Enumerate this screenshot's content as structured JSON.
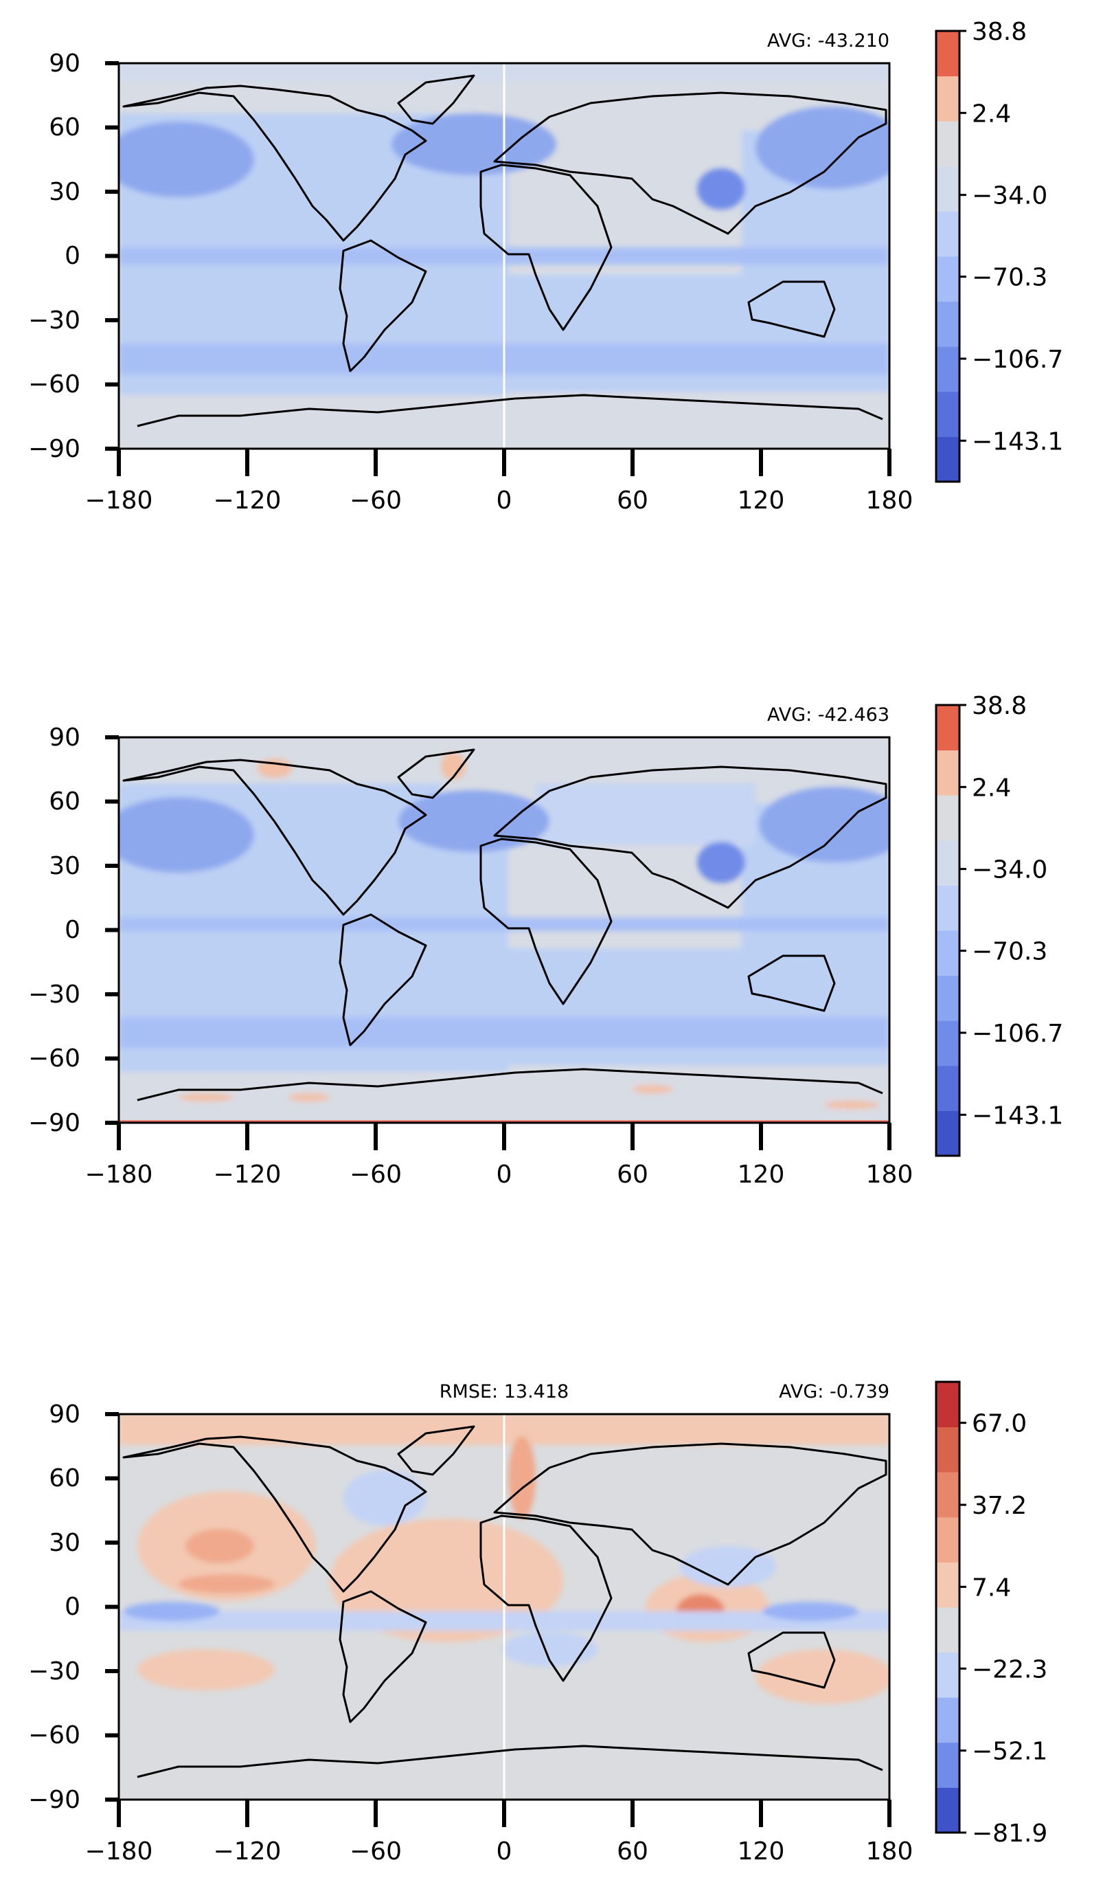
{
  "chart_data": [
    {
      "type": "heatmap",
      "title": "",
      "annotations": {
        "avg": "AVG: -43.210"
      },
      "xlabel": "",
      "ylabel": "",
      "xlim": [
        -180,
        180
      ],
      "ylim": [
        -90,
        90
      ],
      "x_ticks": [
        "−180",
        "−120",
        "−60",
        "0",
        "60",
        "120",
        "180"
      ],
      "y_ticks": [
        "90",
        "60",
        "30",
        "0",
        "−30",
        "−60",
        "−90"
      ],
      "colorbar": {
        "range": [
          -161.3,
          38.8
        ],
        "levels": 11,
        "tick_labels": [
          "38.8",
          "2.4",
          "−34.0",
          "−70.3",
          "−106.7",
          "−143.1"
        ],
        "tick_values": [
          38.8,
          2.4,
          -34.0,
          -70.3,
          -106.7,
          -143.1
        ],
        "colors": [
          "#3f53c9",
          "#5671db",
          "#6f8ce8",
          "#89a5f2",
          "#a4bcf8",
          "#bdcff6",
          "#d1dbeb",
          "#dadcdf",
          "#f3bfa5",
          "#e6634c"
        ]
      },
      "field": "mostly negative (blue) over oceans and storm tracks; near zero (grey) over land, deserts and polar regions",
      "meridian_line": true
    },
    {
      "type": "heatmap",
      "title": "",
      "annotations": {
        "avg": "AVG: -42.463"
      },
      "xlabel": "",
      "ylabel": "",
      "xlim": [
        -180,
        180
      ],
      "ylim": [
        -90,
        90
      ],
      "x_ticks": [
        "−180",
        "−120",
        "−60",
        "0",
        "60",
        "120",
        "180"
      ],
      "y_ticks": [
        "90",
        "60",
        "30",
        "0",
        "−30",
        "−60",
        "−90"
      ],
      "colorbar": {
        "range": [
          -161.3,
          38.8
        ],
        "levels": 11,
        "tick_labels": [
          "38.8",
          "2.4",
          "−34.0",
          "−70.3",
          "−106.7",
          "−143.1"
        ],
        "tick_values": [
          38.8,
          2.4,
          -34.0,
          -70.3,
          -106.7,
          -143.1
        ],
        "colors": [
          "#3f53c9",
          "#5671db",
          "#6f8ce8",
          "#89a5f2",
          "#a4bcf8",
          "#bdcff6",
          "#d1dbeb",
          "#dadcdf",
          "#f3bfa5",
          "#e6634c"
        ]
      },
      "field": "similar pattern to panel 1; small positive (orange) patches over Greenland and Antarctic coast",
      "meridian_line": false
    },
    {
      "type": "heatmap",
      "title": "",
      "annotations": {
        "rmse": "RMSE: 13.418",
        "avg": "AVG: -0.739"
      },
      "xlabel": "",
      "ylabel": "",
      "xlim": [
        -180,
        180
      ],
      "ylim": [
        -90,
        90
      ],
      "x_ticks": [
        "−180",
        "−120",
        "−60",
        "0",
        "60",
        "120",
        "180"
      ],
      "y_ticks": [
        "90",
        "60",
        "30",
        "0",
        "−30",
        "−60",
        "−90"
      ],
      "colorbar": {
        "range": [
          -81.9,
          81.9
        ],
        "levels": 11,
        "tick_labels": [
          "67.0",
          "37.2",
          "7.4",
          "−22.3",
          "−52.1",
          "−81.9"
        ],
        "tick_values": [
          67.0,
          37.2,
          7.4,
          -22.3,
          -52.1,
          -81.9
        ],
        "colors": [
          "#3f53c9",
          "#6f8ce8",
          "#98b2f5",
          "#c3d3f6",
          "#dadcdf",
          "#f3c9b3",
          "#f0a98c",
          "#e7866a",
          "#d9644c",
          "#c43234"
        ]
      },
      "field": "difference map: positive (red) in subtropical eastern Pacific, North Atlantic and South Asia; negative (blue) along the equatorial band",
      "meridian_line": true
    }
  ]
}
